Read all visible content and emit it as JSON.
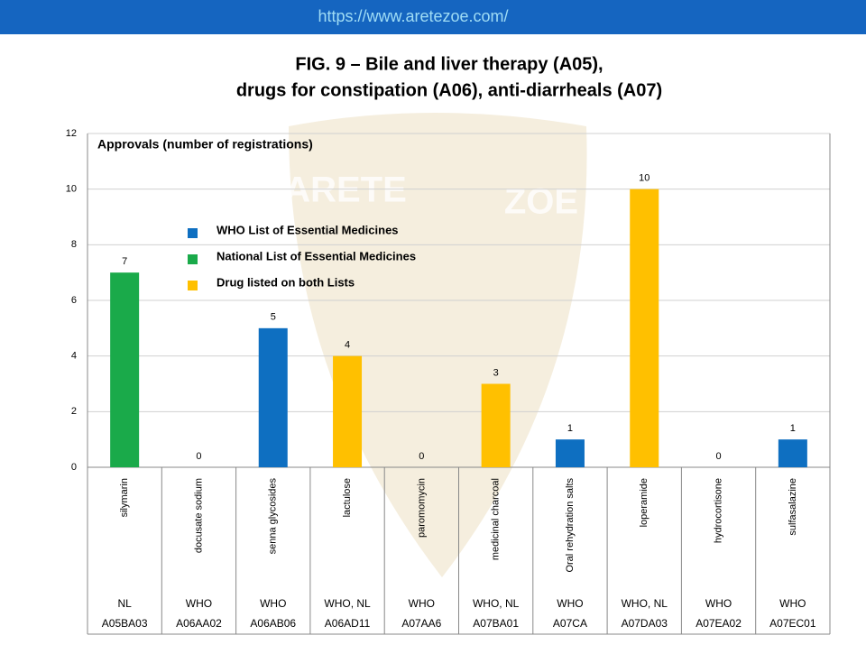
{
  "header": {
    "url": "https://www.aretezoe.com/"
  },
  "chart_data": {
    "type": "bar",
    "title": [
      "FIG. 9 – Bile and liver therapy (A05),",
      "drugs for constipation (A06), anti-diarrheals (A07)"
    ],
    "y_label": "Approvals (number of registrations)",
    "watermark": [
      "ARETE",
      "ZOE"
    ],
    "categories": [
      "silymarin",
      "docusate sodium",
      "senna glycosides",
      "lactulose",
      "paromomycin",
      "medicinal charcoal",
      "Oral rehydration salts",
      "loperamide",
      "hydrocortisone",
      "sulfasalazine"
    ],
    "lists": [
      "NL",
      "WHO",
      "WHO",
      "WHO, NL",
      "WHO",
      "WHO, NL",
      "WHO",
      "WHO, NL",
      "WHO",
      "WHO"
    ],
    "codes": [
      "A05BA03",
      "A06AA02",
      "A06AB06",
      "A06AD11",
      "A07AA6",
      "A07BA01",
      "A07CA",
      "A07DA03",
      "A07EA02",
      "A07EC01"
    ],
    "values": [
      7,
      0,
      5,
      4,
      0,
      3,
      1,
      10,
      0,
      1
    ],
    "colors": [
      "#1aaa4a",
      "#0e6fc1",
      "#0e6fc1",
      "#ffc000",
      "#0e6fc1",
      "#ffc000",
      "#0e6fc1",
      "#ffc000",
      "#0e6fc1",
      "#0e6fc1"
    ],
    "legend": [
      {
        "name": "WHO List of Essential Medicines",
        "color": "#0e6fc1"
      },
      {
        "name": "National List of Essential Medicines",
        "color": "#1aaa4a"
      },
      {
        "name": "Drug listed on both Lists",
        "color": "#ffc000"
      }
    ],
    "ylim": [
      0,
      12
    ],
    "yticks": [
      0,
      2,
      4,
      6,
      8,
      10,
      12
    ],
    "grid": true
  }
}
